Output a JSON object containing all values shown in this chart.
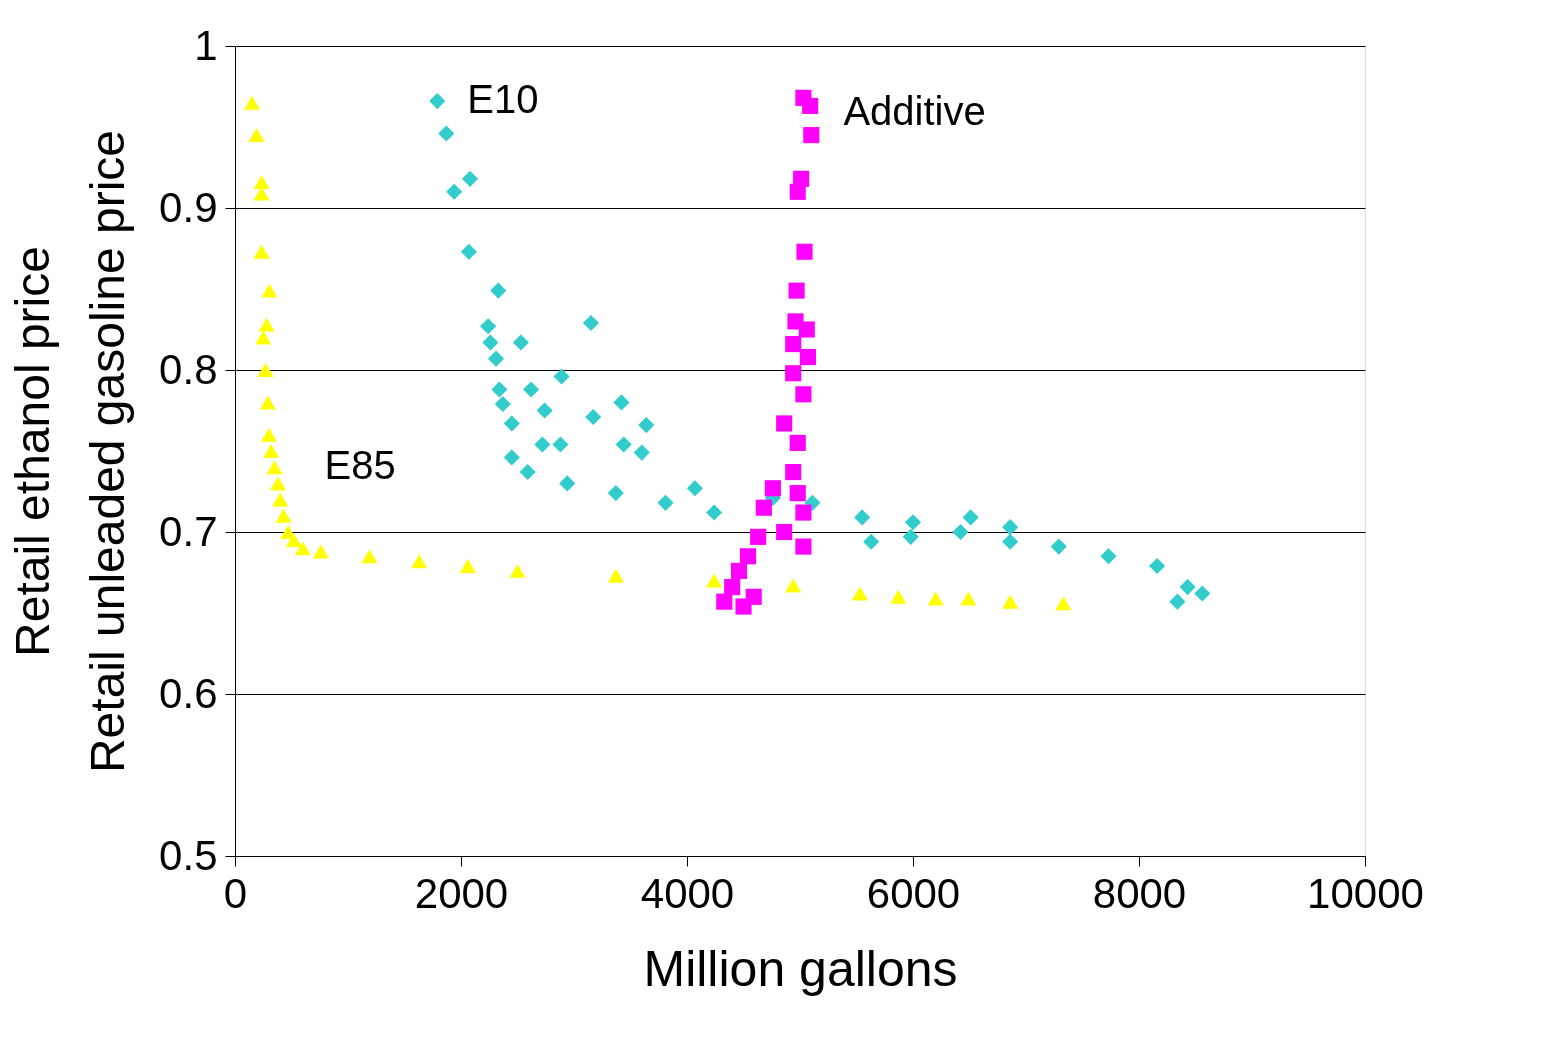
{
  "chart_data": {
    "type": "scatter",
    "xlabel": "Million gallons",
    "ylabel": "Retail ethanol price\nRetail unleaded gasoline price",
    "xlim": [
      0,
      10000
    ],
    "ylim": [
      0.5,
      1
    ],
    "xticks": [
      0,
      2000,
      4000,
      6000,
      8000,
      10000
    ],
    "yticks": [
      0.5,
      0.6,
      0.7,
      0.8,
      0.9,
      1
    ],
    "grid": "y",
    "series": [
      {
        "name": "E10",
        "color": "#33cccc",
        "marker": "diamond",
        "x": [
          1790,
          1870,
          1940,
          2080,
          2070,
          2330,
          2240,
          2260,
          2310,
          2530,
          2340,
          2620,
          2370,
          2740,
          2890,
          3150,
          3170,
          3420,
          3440,
          3640,
          3600,
          2450,
          2720,
          2880,
          2450,
          2590,
          2940,
          3370,
          3810,
          4240,
          4680,
          5110,
          5550,
          6000,
          6420,
          6860,
          7290,
          7730,
          8160,
          8430,
          8560,
          8340,
          4070,
          4760,
          5980,
          6510,
          6860,
          5630
        ],
        "values": [
          0.966,
          0.946,
          0.91,
          0.918,
          0.873,
          0.849,
          0.827,
          0.817,
          0.807,
          0.817,
          0.788,
          0.788,
          0.779,
          0.775,
          0.796,
          0.829,
          0.771,
          0.78,
          0.754,
          0.766,
          0.749,
          0.767,
          0.754,
          0.754,
          0.746,
          0.737,
          0.73,
          0.724,
          0.718,
          0.712,
          null,
          0.718,
          0.709,
          0.706,
          0.7,
          0.694,
          0.691,
          0.685,
          0.679,
          0.666,
          0.662,
          0.657,
          0.727,
          0.721,
          0.697,
          0.709,
          0.703,
          0.694
        ]
      },
      {
        "name": "Additive",
        "color": "#ff00ff",
        "marker": "square",
        "x": [
          5030,
          5090,
          5100,
          5010,
          4980,
          5040,
          4970,
          4960,
          5060,
          4940,
          5070,
          4940,
          5030,
          4860,
          4980,
          4940,
          4760,
          4980,
          4680,
          5030,
          4860,
          4630,
          5030,
          4540,
          4460,
          4400,
          4330,
          4500,
          4590
        ],
        "values": [
          0.968,
          0.963,
          0.945,
          0.918,
          0.91,
          0.873,
          0.849,
          0.83,
          0.825,
          0.816,
          0.808,
          0.798,
          0.785,
          0.767,
          0.755,
          0.737,
          0.727,
          0.724,
          0.715,
          0.712,
          0.7,
          0.697,
          0.691,
          0.685,
          0.676,
          0.666,
          0.657,
          0.654,
          0.66
        ]
      },
      {
        "name": "E85",
        "color": "#ffff00",
        "marker": "triangle",
        "x": [
          150,
          190,
          235,
          235,
          235,
          305,
          280,
          250,
          270,
          290,
          300,
          320,
          350,
          380,
          400,
          430,
          470,
          520,
          600,
          760,
          1190,
          1630,
          2060,
          2500,
          3370,
          4240,
          4940,
          5530,
          5870,
          6200,
          6490,
          6860,
          7330
        ],
        "values": [
          0.965,
          0.945,
          0.916,
          0.909,
          0.873,
          0.849,
          0.828,
          0.82,
          0.8,
          0.78,
          0.76,
          0.75,
          0.74,
          0.73,
          0.72,
          0.71,
          0.7,
          0.695,
          0.69,
          0.688,
          0.685,
          0.682,
          0.679,
          0.676,
          0.673,
          0.67,
          0.667,
          0.662,
          0.66,
          0.659,
          0.659,
          0.657,
          0.656
        ]
      }
    ]
  }
}
